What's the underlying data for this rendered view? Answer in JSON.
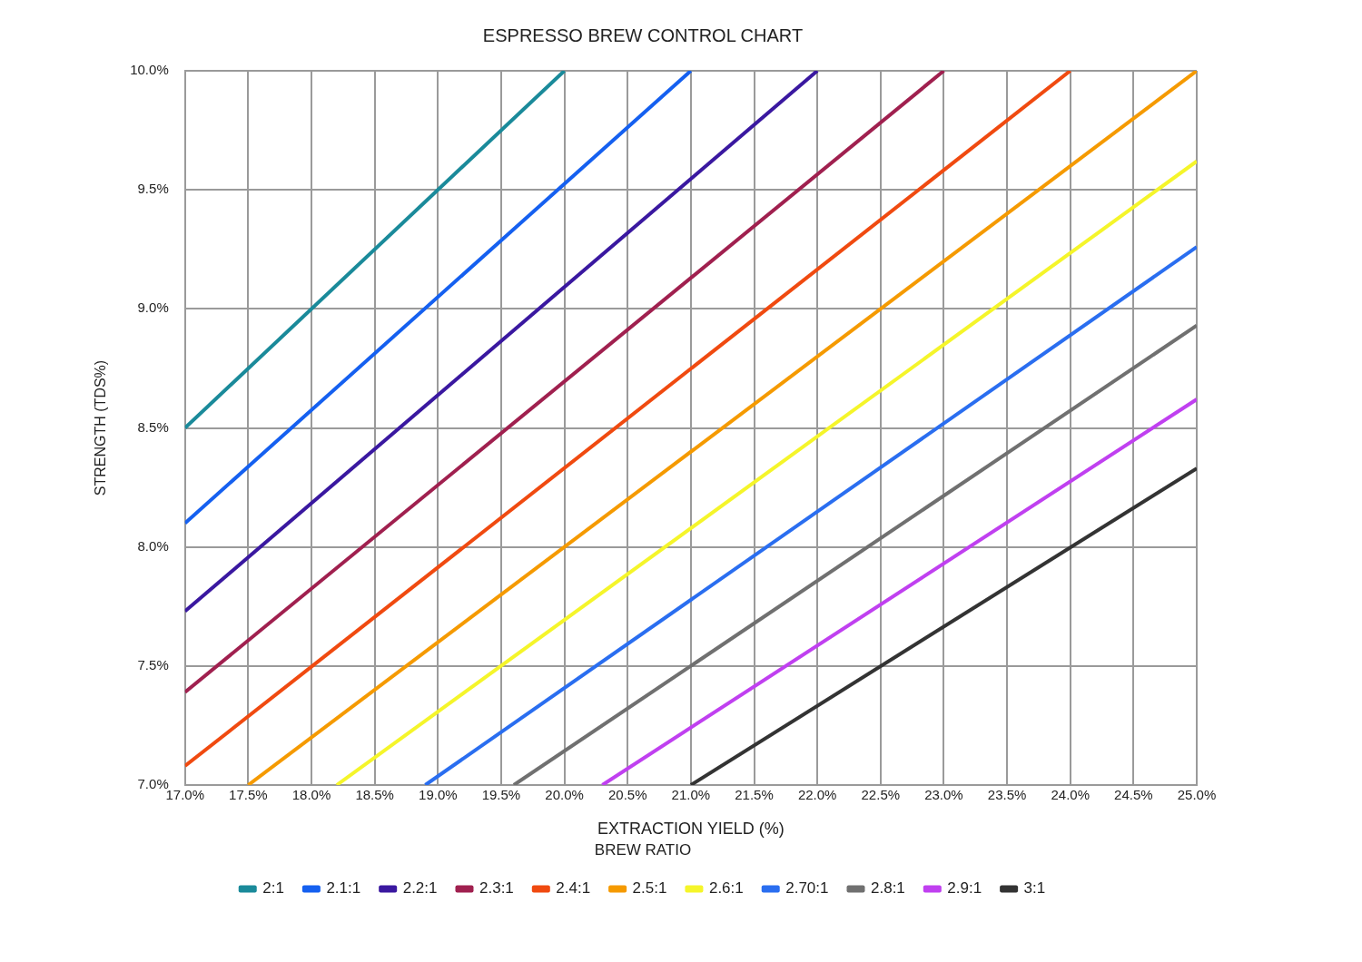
{
  "chart_data": {
    "type": "line",
    "title": "ESPRESSO BREW CONTROL CHART",
    "xlabel": "EXTRACTION YIELD (%)",
    "ylabel": "STRENGTH (TDS%)",
    "legend_title": "BREW RATIO",
    "legend": "bottom",
    "grid": true,
    "marker": "none",
    "line_style": "solid",
    "xlim": [
      17,
      25
    ],
    "ylim": [
      7,
      10
    ],
    "xticks": [
      {
        "value": 17,
        "label": "17.0%"
      },
      {
        "value": 17.5,
        "label": "17.5%"
      },
      {
        "value": 18,
        "label": "18.0%"
      },
      {
        "value": 18.5,
        "label": "18.5%"
      },
      {
        "value": 19,
        "label": "19.0%"
      },
      {
        "value": 19.5,
        "label": "19.5%"
      },
      {
        "value": 20,
        "label": "20.0%"
      },
      {
        "value": 20.5,
        "label": "20.5%"
      },
      {
        "value": 21,
        "label": "21.0%"
      },
      {
        "value": 21.5,
        "label": "21.5%"
      },
      {
        "value": 22,
        "label": "22.0%"
      },
      {
        "value": 22.5,
        "label": "22.5%"
      },
      {
        "value": 23,
        "label": "23.0%"
      },
      {
        "value": 23.5,
        "label": "23.5%"
      },
      {
        "value": 24,
        "label": "24.0%"
      },
      {
        "value": 24.5,
        "label": "24.5%"
      },
      {
        "value": 25,
        "label": "25.0%"
      }
    ],
    "yticks": [
      {
        "value": 7,
        "label": "7.0%"
      },
      {
        "value": 7.5,
        "label": "7.5%"
      },
      {
        "value": 8,
        "label": "8.0%"
      },
      {
        "value": 8.5,
        "label": "8.5%"
      },
      {
        "value": 9,
        "label": "9.0%"
      },
      {
        "value": 9.5,
        "label": "9.5%"
      },
      {
        "value": 10,
        "label": "10.0%"
      }
    ],
    "series": [
      {
        "name": "2:1",
        "color": "#1a8a9a",
        "x": [
          17,
          20
        ],
        "values": [
          8.5,
          10
        ]
      },
      {
        "name": "2.1:1",
        "color": "#1560f0",
        "x": [
          17,
          21
        ],
        "values": [
          8.1,
          10
        ]
      },
      {
        "name": "2.2:1",
        "color": "#3a18a0",
        "x": [
          17,
          22
        ],
        "values": [
          7.73,
          10
        ]
      },
      {
        "name": "2.3:1",
        "color": "#a0204f",
        "x": [
          17,
          23
        ],
        "values": [
          7.39,
          10
        ]
      },
      {
        "name": "2.4:1",
        "color": "#f04a10",
        "x": [
          17,
          24
        ],
        "values": [
          7.08,
          10
        ]
      },
      {
        "name": "2.5:1",
        "color": "#f59a00",
        "x": [
          17.5,
          25
        ],
        "values": [
          7,
          10
        ]
      },
      {
        "name": "2.6:1",
        "color": "#f5f52a",
        "x": [
          18.2,
          25
        ],
        "values": [
          7,
          9.62
        ]
      },
      {
        "name": "2.70:1",
        "color": "#2a6ef0",
        "x": [
          18.9,
          25
        ],
        "values": [
          7,
          9.26
        ]
      },
      {
        "name": "2.8:1",
        "color": "#707070",
        "x": [
          19.6,
          25
        ],
        "values": [
          7,
          8.93
        ]
      },
      {
        "name": "2.9:1",
        "color": "#c040f0",
        "x": [
          20.3,
          25
        ],
        "values": [
          7,
          8.62
        ]
      },
      {
        "name": "3:1",
        "color": "#333333",
        "x": [
          21,
          25
        ],
        "values": [
          7,
          8.33
        ]
      }
    ]
  }
}
